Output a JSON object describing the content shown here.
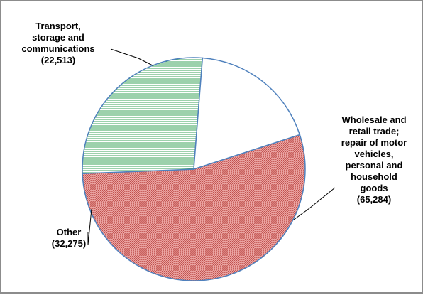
{
  "chart_data": {
    "type": "pie",
    "title": "",
    "slices": [
      {
        "label_lines": [
          "Wholesale and",
          "retail trade;",
          "repair of motor",
          "vehicles,",
          "personal and",
          "household",
          "goods"
        ],
        "value_text": "(65,284)",
        "value": 65284,
        "color": "#f4b6b4",
        "hatch": "#c0504d",
        "pattern": "crosshatch"
      },
      {
        "label_lines": [
          "Other"
        ],
        "value_text": "(32,275)",
        "value": 32275,
        "color": "#ffffff",
        "hatch": "#3aa35a",
        "pattern": "horizontal"
      },
      {
        "label_lines": [
          "Transport,",
          "storage and",
          "communications"
        ],
        "value_text": "(22,513)",
        "value": 22513,
        "color": "#ffffff",
        "hatch": "",
        "pattern": "solid"
      }
    ],
    "edge_color": "#4f81bd",
    "legend": "none"
  }
}
